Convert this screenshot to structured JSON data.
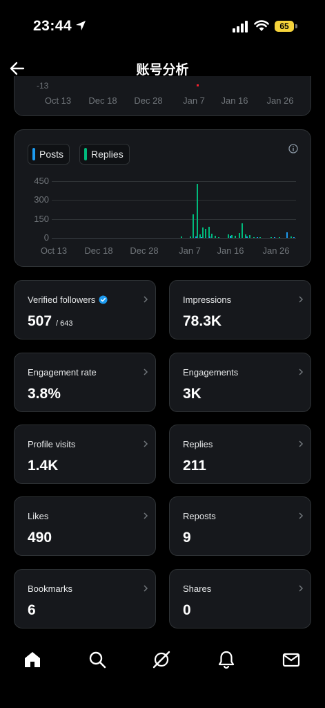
{
  "status": {
    "time": "23:44",
    "battery": "65"
  },
  "header": {
    "title": "账号分析"
  },
  "top_chart": {
    "y_tick": "-13",
    "x_ticks": [
      "Oct 13",
      "Dec 18",
      "Dec 28",
      "Jan 7",
      "Jan 16",
      "Jan 26"
    ]
  },
  "activity_chart": {
    "legend": [
      {
        "label": "Posts",
        "color": "#1d9bf0"
      },
      {
        "label": "Replies",
        "color": "#00ba7c"
      }
    ]
  },
  "chart_data": {
    "type": "bar",
    "x_ticks": [
      "Oct 13",
      "Dec 18",
      "Dec 28",
      "Jan 7",
      "Jan 16",
      "Jan 26"
    ],
    "y_ticks": [
      "450",
      "300",
      "150",
      "0"
    ],
    "ylim": [
      0,
      450
    ],
    "grid": true,
    "legend_position": "top-left",
    "series": [
      {
        "name": "Replies",
        "color": "#00ba7c",
        "points": [
          {
            "d": 0.528,
            "v": 10
          },
          {
            "d": 0.565,
            "v": 12
          },
          {
            "d": 0.576,
            "v": 185
          },
          {
            "d": 0.593,
            "v": 430
          },
          {
            "d": 0.604,
            "v": 30
          },
          {
            "d": 0.615,
            "v": 85
          },
          {
            "d": 0.628,
            "v": 70
          },
          {
            "d": 0.641,
            "v": 90
          },
          {
            "d": 0.652,
            "v": 35
          },
          {
            "d": 0.667,
            "v": 15
          },
          {
            "d": 0.68,
            "v": 8
          },
          {
            "d": 0.72,
            "v": 25
          },
          {
            "d": 0.735,
            "v": 20
          },
          {
            "d": 0.748,
            "v": 18
          },
          {
            "d": 0.765,
            "v": 40
          },
          {
            "d": 0.776,
            "v": 115
          },
          {
            "d": 0.79,
            "v": 25
          },
          {
            "d": 0.808,
            "v": 20
          },
          {
            "d": 0.824,
            "v": 8
          },
          {
            "d": 0.85,
            "v": 8
          },
          {
            "d": 0.895,
            "v": 6
          },
          {
            "d": 0.93,
            "v": 5
          },
          {
            "d": 0.977,
            "v": 10
          }
        ]
      },
      {
        "name": "Posts",
        "color": "#1d9bf0",
        "points": [
          {
            "d": 0.587,
            "v": 12
          },
          {
            "d": 0.61,
            "v": 8
          },
          {
            "d": 0.645,
            "v": 10
          },
          {
            "d": 0.728,
            "v": 15
          },
          {
            "d": 0.796,
            "v": 12
          },
          {
            "d": 0.84,
            "v": 6
          },
          {
            "d": 0.91,
            "v": 5
          },
          {
            "d": 0.96,
            "v": 45
          },
          {
            "d": 0.99,
            "v": 8
          }
        ]
      }
    ]
  },
  "metrics": [
    {
      "label": "Verified followers",
      "value": "507",
      "sub": "/ 643",
      "verified": true
    },
    {
      "label": "Impressions",
      "value": "78.3K"
    },
    {
      "label": "Engagement rate",
      "value": "3.8%"
    },
    {
      "label": "Engagements",
      "value": "3K"
    },
    {
      "label": "Profile visits",
      "value": "1.4K"
    },
    {
      "label": "Replies",
      "value": "211"
    },
    {
      "label": "Likes",
      "value": "490"
    },
    {
      "label": "Reposts",
      "value": "9"
    },
    {
      "label": "Bookmarks",
      "value": "6"
    },
    {
      "label": "Shares",
      "value": "0"
    }
  ],
  "nav": {
    "items": [
      "home-icon",
      "search-icon",
      "grok-icon",
      "notifications-icon",
      "messages-icon"
    ]
  }
}
